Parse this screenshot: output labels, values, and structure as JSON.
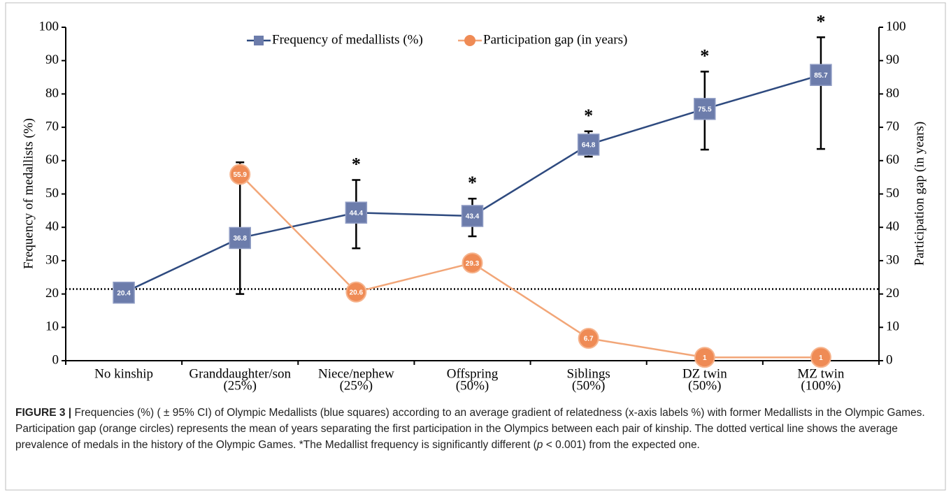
{
  "chart_data": {
    "type": "line",
    "categories": [
      [
        "No kinship"
      ],
      [
        "Granddaughter/son",
        "(25%)"
      ],
      [
        "Niece/nephew",
        "(25%)"
      ],
      [
        "Offspring",
        "(50%)"
      ],
      [
        "Siblings",
        "(50%)"
      ],
      [
        "DZ twin",
        "(50%)"
      ],
      [
        "MZ twin",
        "(100%)"
      ]
    ],
    "ylabel": "Frequency of medallists (%)",
    "y2label": "Participation gap (in years)",
    "ylim": [
      0,
      100
    ],
    "yticks": [
      0,
      10,
      20,
      30,
      40,
      50,
      60,
      70,
      80,
      90,
      100
    ],
    "y2lim": [
      0,
      100
    ],
    "y2ticks": [
      0,
      10,
      20,
      30,
      40,
      50,
      60,
      70,
      80,
      90,
      100
    ],
    "legend": "top",
    "series": [
      {
        "name": "Frequency of medallists (%)",
        "color": "#2e4a7f",
        "marker": "square",
        "marker_color": "#6c7cab",
        "values": [
          20.4,
          36.8,
          44.4,
          43.4,
          64.8,
          75.5,
          85.7
        ],
        "ci_low": [
          null,
          20,
          33.7,
          37.3,
          61.2,
          63.3,
          63.5
        ],
        "ci_high": [
          null,
          59.5,
          54.2,
          48.6,
          68.8,
          86.7,
          97
        ]
      },
      {
        "name": "Participation gap (in years)",
        "color": "#f2a678",
        "marker": "circle",
        "marker_color": "#ef8b55",
        "axis": "y2",
        "values": [
          null,
          55.9,
          20.6,
          29.3,
          6.7,
          1,
          1
        ]
      }
    ],
    "significance": [
      null,
      null,
      "*",
      "*",
      "*",
      "*",
      "*"
    ],
    "reference_line": {
      "value": 21.5,
      "style": "dotted"
    }
  },
  "caption": {
    "label": "FIGURE 3 |",
    "parts": [
      " Frequencies (%) ( ± 95% CI) of Olympic Medallists (blue squares) according to an average gradient of relatedness (x-axis labels %) with former Medallists in the Olympic Games. Participation gap (orange circles) represents the mean of years separating the first participation in the Olympics between each pair of kinship. The dotted vertical line shows the average prevalence of medals in the history of the Olympic Games. *The Medallist frequency is significantly different (",
      "p",
      " < 0.001) from the expected one."
    ]
  }
}
